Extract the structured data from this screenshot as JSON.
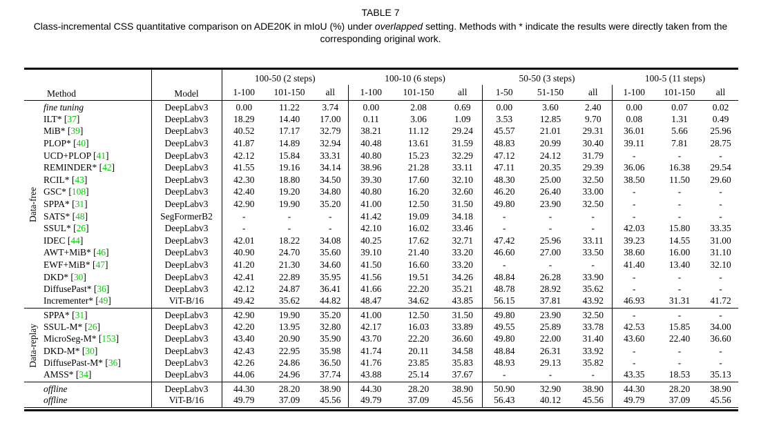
{
  "title": "TABLE 7",
  "caption": {
    "part1": "Class-incremental CSS quantitative comparison on ADE20K in mIoU (%) under ",
    "italic": "overlapped",
    "part2": " setting. Methods with * indicate the results were directly taken from the corresponding original work."
  },
  "colors": {
    "citation_green": "#00d000"
  },
  "table": {
    "col_headers": {
      "method": "Method",
      "model": "Model",
      "groups": [
        {
          "label": "100-50 (2 steps)",
          "sub": [
            "1-100",
            "101-150",
            "all"
          ]
        },
        {
          "label": "100-10 (6 steps)",
          "sub": [
            "1-100",
            "101-150",
            "all"
          ]
        },
        {
          "label": "50-50 (3 steps)",
          "sub": [
            "1-50",
            "51-150",
            "all"
          ]
        },
        {
          "label": "100-5 (11 steps)",
          "sub": [
            "1-100",
            "101-150",
            "all"
          ]
        }
      ]
    },
    "sections": [
      {
        "label": "Data-free",
        "rows": [
          {
            "method": "fine tuning",
            "italic": true,
            "cite": null,
            "model": "DeepLabv3",
            "values": [
              "0.00",
              "11.22",
              "3.74",
              "0.00",
              "2.08",
              "0.69",
              "0.00",
              "3.60",
              "2.40",
              "0.00",
              "0.07",
              "0.02"
            ]
          },
          {
            "method": "ILT*",
            "italic": false,
            "cite": "37",
            "model": "DeepLabv3",
            "values": [
              "18.29",
              "14.40",
              "17.00",
              "0.11",
              "3.06",
              "1.09",
              "3.53",
              "12.85",
              "9.70",
              "0.08",
              "1.31",
              "0.49"
            ]
          },
          {
            "method": "MiB*",
            "italic": false,
            "cite": "39",
            "model": "DeepLabv3",
            "values": [
              "40.52",
              "17.17",
              "32.79",
              "38.21",
              "11.12",
              "29.24",
              "45.57",
              "21.01",
              "29.31",
              "36.01",
              "5.66",
              "25.96"
            ]
          },
          {
            "method": "PLOP*",
            "italic": false,
            "cite": "40",
            "model": "DeepLabv3",
            "values": [
              "41.87",
              "14.89",
              "32.94",
              "40.48",
              "13.61",
              "31.59",
              "48.83",
              "20.99",
              "30.40",
              "39.11",
              "7.81",
              "28.75"
            ]
          },
          {
            "method": "UCD+PLOP",
            "italic": false,
            "cite": "41",
            "model": "DeepLabv3",
            "values": [
              "42.12",
              "15.84",
              "33.31",
              "40.80",
              "15.23",
              "32.29",
              "47.12",
              "24.12",
              "31.79",
              "-",
              "-",
              "-"
            ]
          },
          {
            "method": "REMINDER*",
            "italic": false,
            "cite": "42",
            "model": "DeepLabv3",
            "values": [
              "41.55",
              "19.16",
              "34.14",
              "38.96",
              "21.28",
              "33.11",
              "47.11",
              "20.35",
              "29.39",
              "36.06",
              "16.38",
              "29.54"
            ]
          },
          {
            "method": "RCIL*",
            "italic": false,
            "cite": "43",
            "model": "DeepLabv3",
            "values": [
              "42.30",
              "18.80",
              "34.50",
              "39.30",
              "17.60",
              "32.10",
              "48.30",
              "25.00",
              "32.50",
              "38.50",
              "11.50",
              "29.60"
            ]
          },
          {
            "method": "GSC*",
            "italic": false,
            "cite": "108",
            "model": "DeepLabv3",
            "values": [
              "42.40",
              "19.20",
              "34.80",
              "40.80",
              "16.20",
              "32.60",
              "46.20",
              "26.40",
              "33.00",
              "-",
              "-",
              "-"
            ]
          },
          {
            "method": "SPPA*",
            "italic": false,
            "cite": "31",
            "model": "DeepLabv3",
            "values": [
              "42.90",
              "19.90",
              "35.20",
              "41.00",
              "12.50",
              "31.50",
              "49.80",
              "23.90",
              "32.50",
              "-",
              "-",
              "-"
            ]
          },
          {
            "method": "SATS*",
            "italic": false,
            "cite": "48",
            "model": "SegFormerB2",
            "values": [
              "-",
              "-",
              "-",
              "41.42",
              "19.09",
              "34.18",
              "-",
              "-",
              "-",
              "-",
              "-",
              "-"
            ]
          },
          {
            "method": "SSUL*",
            "italic": false,
            "cite": "26",
            "model": "DeepLabv3",
            "values": [
              "-",
              "-",
              "-",
              "42.10",
              "16.02",
              "33.46",
              "-",
              "-",
              "-",
              "42.03",
              "15.80",
              "33.35"
            ]
          },
          {
            "method": "IDEC",
            "italic": false,
            "cite": "44",
            "model": "DeepLabv3",
            "values": [
              "42.01",
              "18.22",
              "34.08",
              "40.25",
              "17.62",
              "32.71",
              "47.42",
              "25.96",
              "33.11",
              "39.23",
              "14.55",
              "31.00"
            ]
          },
          {
            "method": "AWT+MiB*",
            "italic": false,
            "cite": "46",
            "model": "DeepLabv3",
            "values": [
              "40.90",
              "24.70",
              "35.60",
              "39.10",
              "21.40",
              "33.20",
              "46.60",
              "27.00",
              "33.50",
              "38.60",
              "16.00",
              "31.10"
            ]
          },
          {
            "method": "EWF+MiB*",
            "italic": false,
            "cite": "47",
            "model": "DeepLabv3",
            "values": [
              "41.20",
              "21.30",
              "34.60",
              "41.50",
              "16.60",
              "33.20",
              "-",
              "-",
              "-",
              "41.40",
              "13.40",
              "32.10"
            ]
          },
          {
            "method": "DKD*",
            "italic": false,
            "cite": "30",
            "model": "DeepLabv3",
            "values": [
              "42.41",
              "22.89",
              "35.95",
              "41.56",
              "19.51",
              "34.26",
              "48.84",
              "26.28",
              "33.90",
              "-",
              "-",
              "-"
            ]
          },
          {
            "method": "DiffusePast*",
            "italic": false,
            "cite": "36",
            "model": "DeepLabv3",
            "values": [
              "42.12",
              "24.87",
              "36.41",
              "41.66",
              "22.20",
              "35.21",
              "48.78",
              "28.92",
              "35.62",
              "-",
              "-",
              "-"
            ]
          },
          {
            "method": "Incrementer*",
            "italic": false,
            "cite": "49",
            "model": "ViT-B/16",
            "values": [
              "49.42",
              "35.62",
              "44.82",
              "48.47",
              "34.62",
              "43.85",
              "56.15",
              "37.81",
              "43.92",
              "46.93",
              "31.31",
              "41.72"
            ]
          }
        ]
      },
      {
        "label": "Data-replay",
        "rows": [
          {
            "method": "SPPA*",
            "italic": false,
            "cite": "31",
            "model": "DeepLabv3",
            "values": [
              "42.90",
              "19.90",
              "35.20",
              "41.00",
              "12.50",
              "31.50",
              "49.80",
              "23.90",
              "32.50",
              "-",
              "-",
              "-"
            ]
          },
          {
            "method": "SSUL-M*",
            "italic": false,
            "cite": "26",
            "model": "DeepLabv3",
            "values": [
              "42.20",
              "13.95",
              "32.80",
              "42.17",
              "16.03",
              "33.89",
              "49.55",
              "25.89",
              "33.78",
              "42.53",
              "15.85",
              "34.00"
            ]
          },
          {
            "method": "MicroSeg-M*",
            "italic": false,
            "cite": "153",
            "model": "DeepLabv3",
            "values": [
              "43.40",
              "20.90",
              "35.90",
              "43.70",
              "22.20",
              "36.60",
              "49.80",
              "22.00",
              "31.40",
              "43.60",
              "22.40",
              "36.60"
            ]
          },
          {
            "method": "DKD-M*",
            "italic": false,
            "cite": "30",
            "model": "DeepLabv3",
            "values": [
              "42.43",
              "22.95",
              "35.98",
              "41.74",
              "20.11",
              "34.58",
              "48.84",
              "26.31",
              "33.92",
              "-",
              "-",
              "-"
            ]
          },
          {
            "method": "DiffusePast-M*",
            "italic": false,
            "cite": "36",
            "model": "DeepLabv3",
            "values": [
              "42.26",
              "24.86",
              "36.50",
              "41.76",
              "23.85",
              "35.83",
              "48.93",
              "29.13",
              "35.82",
              "-",
              "-",
              "-"
            ]
          },
          {
            "method": "AMSS*",
            "italic": false,
            "cite": "34",
            "model": "DeepLabv3",
            "values": [
              "44.06",
              "24.96",
              "37.74",
              "43.88",
              "25.14",
              "37.67",
              "-",
              "-",
              "-",
              "43.35",
              "18.53",
              "35.13"
            ]
          }
        ]
      },
      {
        "label": "",
        "rows": [
          {
            "method": "offline",
            "italic": true,
            "cite": null,
            "model": "DeepLabv3",
            "values": [
              "44.30",
              "28.20",
              "38.90",
              "44.30",
              "28.20",
              "38.90",
              "50.90",
              "32.90",
              "38.90",
              "44.30",
              "28.20",
              "38.90"
            ]
          },
          {
            "method": "offline",
            "italic": true,
            "cite": null,
            "model": "ViT-B/16",
            "values": [
              "49.79",
              "37.09",
              "45.56",
              "49.79",
              "37.09",
              "45.56",
              "56.43",
              "40.12",
              "45.56",
              "49.79",
              "37.09",
              "45.56"
            ]
          }
        ]
      }
    ]
  }
}
